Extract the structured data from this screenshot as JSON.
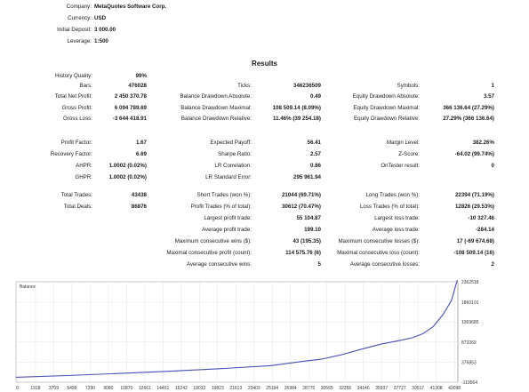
{
  "header": [
    {
      "label": "Company:",
      "value": "MetaQuotes Software Corp."
    },
    {
      "label": "Currency:",
      "value": "USD"
    },
    {
      "label": "Initial Deposit:",
      "value": "3 000.00"
    },
    {
      "label": "Leverage:",
      "value": "1:500"
    }
  ],
  "results_title": "Results",
  "rows": [
    [
      [
        "History Quality:",
        "99%"
      ],
      null,
      null
    ],
    [
      [
        "Bars:",
        "476028"
      ],
      [
        "Ticks:",
        "346236509"
      ],
      [
        "Symbols:",
        "1"
      ]
    ],
    [
      [
        "Total Net Profit:",
        "2 450 370.78"
      ],
      [
        "Balance Drawdown Absolute:",
        "0.49"
      ],
      [
        "Equity Drawdown Absolute:",
        "3.57"
      ]
    ],
    [
      [
        "Gross Profit:",
        "6 094 789.69"
      ],
      [
        "Balance Drawdown Maximal:",
        "108 509.14 (8.09%)"
      ],
      [
        "Equity Drawdown Maximal:",
        "366 136.64 (27.29%)"
      ]
    ],
    [
      [
        "Gross Loss:",
        "-3 644 418.91"
      ],
      [
        "Balance Drawdown Relative:",
        "11.46% (39 254.18)"
      ],
      [
        "Equity Drawdown Relative:",
        "27.29% (366 136.64)"
      ]
    ],
    [
      [
        "Profit Factor:",
        "1.67"
      ],
      [
        "Expected Payoff:",
        "56.41"
      ],
      [
        "Margin Level:",
        "382.26%"
      ]
    ],
    [
      [
        "Recovery Factor:",
        "6.69"
      ],
      [
        "Sharpe Ratio:",
        "2.57"
      ],
      [
        "Z-Score:",
        "-64.02 (99.74%)"
      ]
    ],
    [
      [
        "AHPR:",
        "1.0002 (0.02%)"
      ],
      [
        "LR Correlation:",
        "0.86"
      ],
      [
        "OnTester result:",
        "0"
      ]
    ],
    [
      [
        "GHPR:",
        "1.0002 (0.02%)"
      ],
      [
        "LR Standard Error:",
        "295 961.94"
      ],
      null
    ],
    [
      [
        "Total Trades:",
        "43438"
      ],
      [
        "Short Trades (won %):",
        "21044 (69.71%)"
      ],
      [
        "Long Trades (won %):",
        "22394 (71.19%)"
      ]
    ],
    [
      [
        "Total Deals:",
        "86876"
      ],
      [
        "Profit Trades (% of total):",
        "30612 (70.47%)"
      ],
      [
        "Loss Trades (% of total):",
        "12826 (29.53%)"
      ]
    ],
    [
      null,
      [
        "Largest profit trade:",
        "55 104.87"
      ],
      [
        "Largest loss trade:",
        "-10 327.46"
      ]
    ],
    [
      null,
      [
        "Average profit trade:",
        "199.10"
      ],
      [
        "Average loss trade:",
        "-284.14"
      ]
    ],
    [
      null,
      [
        "Maximum consecutive wins ($):",
        "43 (195.35)"
      ],
      [
        "Maximum consecutive losses ($):",
        "17 (-69 674.68)"
      ]
    ],
    [
      null,
      [
        "Maximal consecutive profit (count):",
        "114 575.76 (6)"
      ],
      [
        "Maximal consecutive loss (count):",
        "-108 509.14 (16)"
      ]
    ],
    [
      null,
      [
        "Average consecutive wins:",
        "5"
      ],
      [
        "Average consecutive losses:",
        "2"
      ]
    ]
  ],
  "chart_data": {
    "type": "line",
    "legend": "Balance",
    "x_ticks": [
      "0",
      "1918",
      "3709",
      "5499",
      "7290",
      "9080",
      "10870",
      "12661",
      "14451",
      "16242",
      "18032",
      "19823",
      "21613",
      "23403",
      "25194",
      "26984",
      "28775",
      "30565",
      "32356",
      "34146",
      "35937",
      "37727",
      "39517",
      "41308",
      "43098"
    ],
    "y_ticks": [
      "2362518",
      "1860101",
      "1369685",
      "873269",
      "376853",
      "-119564"
    ],
    "ylim": [
      -119564,
      2362518
    ],
    "xlim": [
      0,
      43438
    ],
    "series": [
      {
        "name": "Balance",
        "color": "#4a4fb5",
        "x": [
          0,
          5000,
          10000,
          15000,
          20000,
          25000,
          28000,
          30000,
          32000,
          34000,
          36000,
          37500,
          39000,
          40000,
          41000,
          42000,
          42800,
          43438
        ],
        "y": [
          3000,
          45000,
          95000,
          150000,
          215000,
          290000,
          390000,
          450000,
          560000,
          700000,
          830000,
          900000,
          980000,
          1080000,
          1250000,
          1560000,
          1900000,
          2453370
        ]
      }
    ]
  }
}
